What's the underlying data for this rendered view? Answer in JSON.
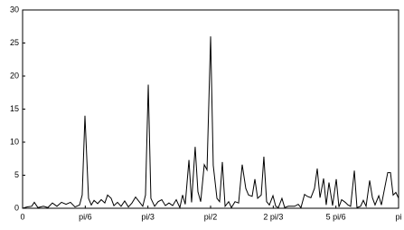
{
  "chart_data": {
    "type": "line",
    "color": "#000000",
    "x": [
      0,
      0.038,
      0.076,
      0.098,
      0.128,
      0.174,
      0.211,
      0.249,
      0.287,
      0.325,
      0.363,
      0.4,
      0.438,
      0.476,
      0.498,
      0.521,
      0.551,
      0.574,
      0.597,
      0.627,
      0.657,
      0.687,
      0.71,
      0.74,
      0.763,
      0.793,
      0.823,
      0.853,
      0.884,
      0.914,
      0.944,
      0.974,
      1.004,
      1.027,
      1.05,
      1.072,
      1.103,
      1.133,
      1.163,
      1.193,
      1.223,
      1.254,
      1.284,
      1.314,
      1.337,
      1.359,
      1.39,
      1.412,
      1.442,
      1.465,
      1.488,
      1.518,
      1.541,
      1.571,
      1.593,
      1.624,
      1.646,
      1.669,
      1.692,
      1.722,
      1.745,
      1.775,
      1.805,
      1.835,
      1.865,
      1.888,
      1.918,
      1.941,
      1.964,
      1.994,
      2.016,
      2.039,
      2.062,
      2.092,
      2.115,
      2.137,
      2.167,
      2.19,
      2.22,
      2.243,
      2.273,
      2.303,
      2.326,
      2.356,
      2.379,
      2.409,
      2.439,
      2.462,
      2.485,
      2.515,
      2.537,
      2.56,
      2.59,
      2.621,
      2.643,
      2.666,
      2.696,
      2.719,
      2.741,
      2.772,
      2.794,
      2.824,
      2.847,
      2.87,
      2.9,
      2.923,
      2.945,
      2.976,
      2.998,
      3.028,
      3.051,
      3.074,
      3.096,
      3.119,
      3.142
    ],
    "values": [
      0,
      0.2,
      0.3,
      0.9,
      0.1,
      0.3,
      0.1,
      0.8,
      0.3,
      0.9,
      0.6,
      0.9,
      0.2,
      0.5,
      2,
      14,
      1.5,
      0.5,
      1.2,
      0.7,
      1.3,
      0.8,
      2,
      1.5,
      0.4,
      0.9,
      0.3,
      1.1,
      0.2,
      0.8,
      1.7,
      1,
      0.3,
      2,
      18.7,
      1.5,
      0.3,
      1,
      1.3,
      0.4,
      0.8,
      0.4,
      1.3,
      0.1,
      2,
      0.6,
      7.3,
      0.9,
      9.3,
      2.5,
      1,
      6.6,
      5.8,
      26,
      6.5,
      1.5,
      1,
      7,
      0.3,
      1,
      0.1,
      1,
      0.8,
      6.6,
      3,
      2,
      1.8,
      4.4,
      1.5,
      2,
      7.8,
      1,
      0.5,
      1.9,
      0.3,
      0.1,
      1.5,
      0.1,
      0.3,
      0.3,
      0.3,
      0.6,
      0.1,
      2.1,
      1.8,
      1.6,
      3,
      6,
      1.6,
      4.5,
      0.5,
      3.9,
      0.4,
      4.4,
      0.2,
      1.3,
      0.9,
      0.5,
      0.3,
      5.7,
      0.1,
      0.3,
      1.2,
      0.3,
      4.2,
      1.6,
      0.5,
      1.9,
      0.5,
      3.3,
      5.4,
      5.4,
      2,
      2.4,
      1.5
    ],
    "xlim": [
      0,
      3.1416
    ],
    "xticks": [
      0,
      {
        "value": 0.5236,
        "label": "pi/6"
      },
      {
        "value": 1.0472,
        "label": "pi/3"
      },
      {
        "value": 1.5708,
        "label": "pi/2"
      },
      {
        "value": 2.0944,
        "label": "2 pi/3"
      },
      {
        "value": 2.618,
        "label": "5 pi/6"
      },
      {
        "value": 3.1416,
        "label": "pi"
      }
    ],
    "ylim": [
      0,
      30
    ],
    "yticks": [
      0,
      5,
      10,
      15,
      20,
      25,
      30
    ]
  }
}
